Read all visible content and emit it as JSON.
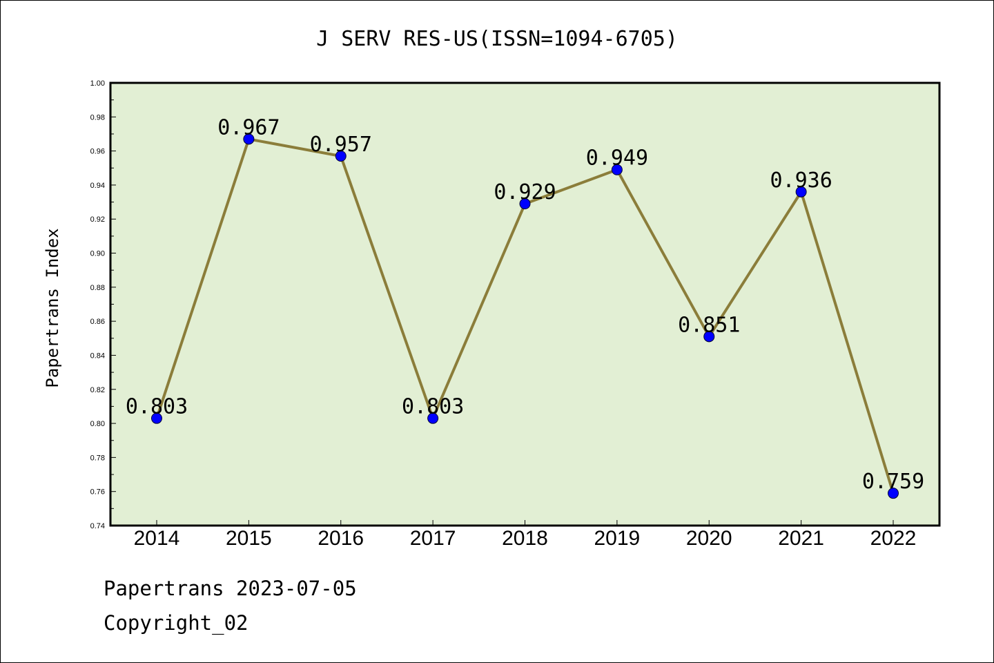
{
  "chart_data": {
    "type": "line",
    "title": "J SERV RES-US(ISSN=1094-6705)",
    "ylabel": "Papertrans Index",
    "xlabel": "",
    "categories": [
      "2014",
      "2015",
      "2016",
      "2017",
      "2018",
      "2019",
      "2020",
      "2021",
      "2022"
    ],
    "values": [
      0.803,
      0.967,
      0.957,
      0.803,
      0.929,
      0.949,
      0.851,
      0.936,
      0.759
    ],
    "data_labels": [
      "0.803",
      "0.967",
      "0.957",
      "0.803",
      "0.929",
      "0.949",
      "0.851",
      "0.936",
      "0.759"
    ],
    "ylim": [
      0.74,
      1.0
    ],
    "yticks": [
      "0.74",
      "0.76",
      "0.78",
      "0.80",
      "0.82",
      "0.84",
      "0.86",
      "0.88",
      "0.90",
      "0.92",
      "0.94",
      "0.96",
      "0.98",
      "1.00"
    ],
    "grid": false,
    "colors": {
      "plot_bg": "#e2efd4",
      "line": "#8b7d3a",
      "marker": "#0000ff"
    }
  },
  "footer": {
    "line1": "Papertrans 2023-07-05",
    "line2": "Copyright_02"
  }
}
